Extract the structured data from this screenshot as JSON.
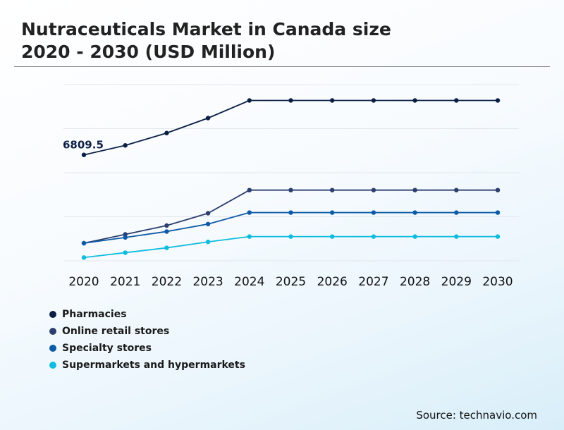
{
  "title": {
    "line1": "Nutraceuticals Market in Canada size",
    "line2": "2020 - 2030 (USD Million)"
  },
  "source": "Source: technavio.com",
  "chart_data": {
    "type": "line",
    "title": "Nutraceuticals Market in Canada size 2020 - 2030 (USD Million)",
    "categories": [
      "2020",
      "2021",
      "2022",
      "2023",
      "2024",
      "2025",
      "2026",
      "2027",
      "2028",
      "2029",
      "2030"
    ],
    "series": [
      {
        "name": "Pharmacies",
        "color": "#0b1f45",
        "values": [
          6809.5,
          7240,
          7800,
          8480,
          9280,
          9280,
          9280,
          9280,
          9280,
          9280,
          9280
        ]
      },
      {
        "name": "Online retail stores",
        "color": "#2c3e6e",
        "values": [
          2800,
          3200,
          3600,
          4160,
          5210,
          5210,
          5210,
          5210,
          5210,
          5210,
          5210
        ]
      },
      {
        "name": "Specialty stores",
        "color": "#0d5aa7",
        "values": [
          2800,
          3060,
          3330,
          3670,
          4190,
          4190,
          4190,
          4190,
          4190,
          4190,
          4190
        ]
      },
      {
        "name": "Supermarkets and hypermarkets",
        "color": "#0fbcdf",
        "values": [
          2150,
          2370,
          2590,
          2860,
          3100,
          3100,
          3100,
          3100,
          3100,
          3100,
          3100
        ]
      }
    ],
    "annotations": [
      {
        "series": "Pharmacies",
        "category": "2020",
        "label": "6809.5"
      }
    ],
    "ylim": [
      2000,
      10000
    ],
    "grid": true,
    "legend_position": "bottom-left",
    "xlabel": "",
    "ylabel": ""
  }
}
